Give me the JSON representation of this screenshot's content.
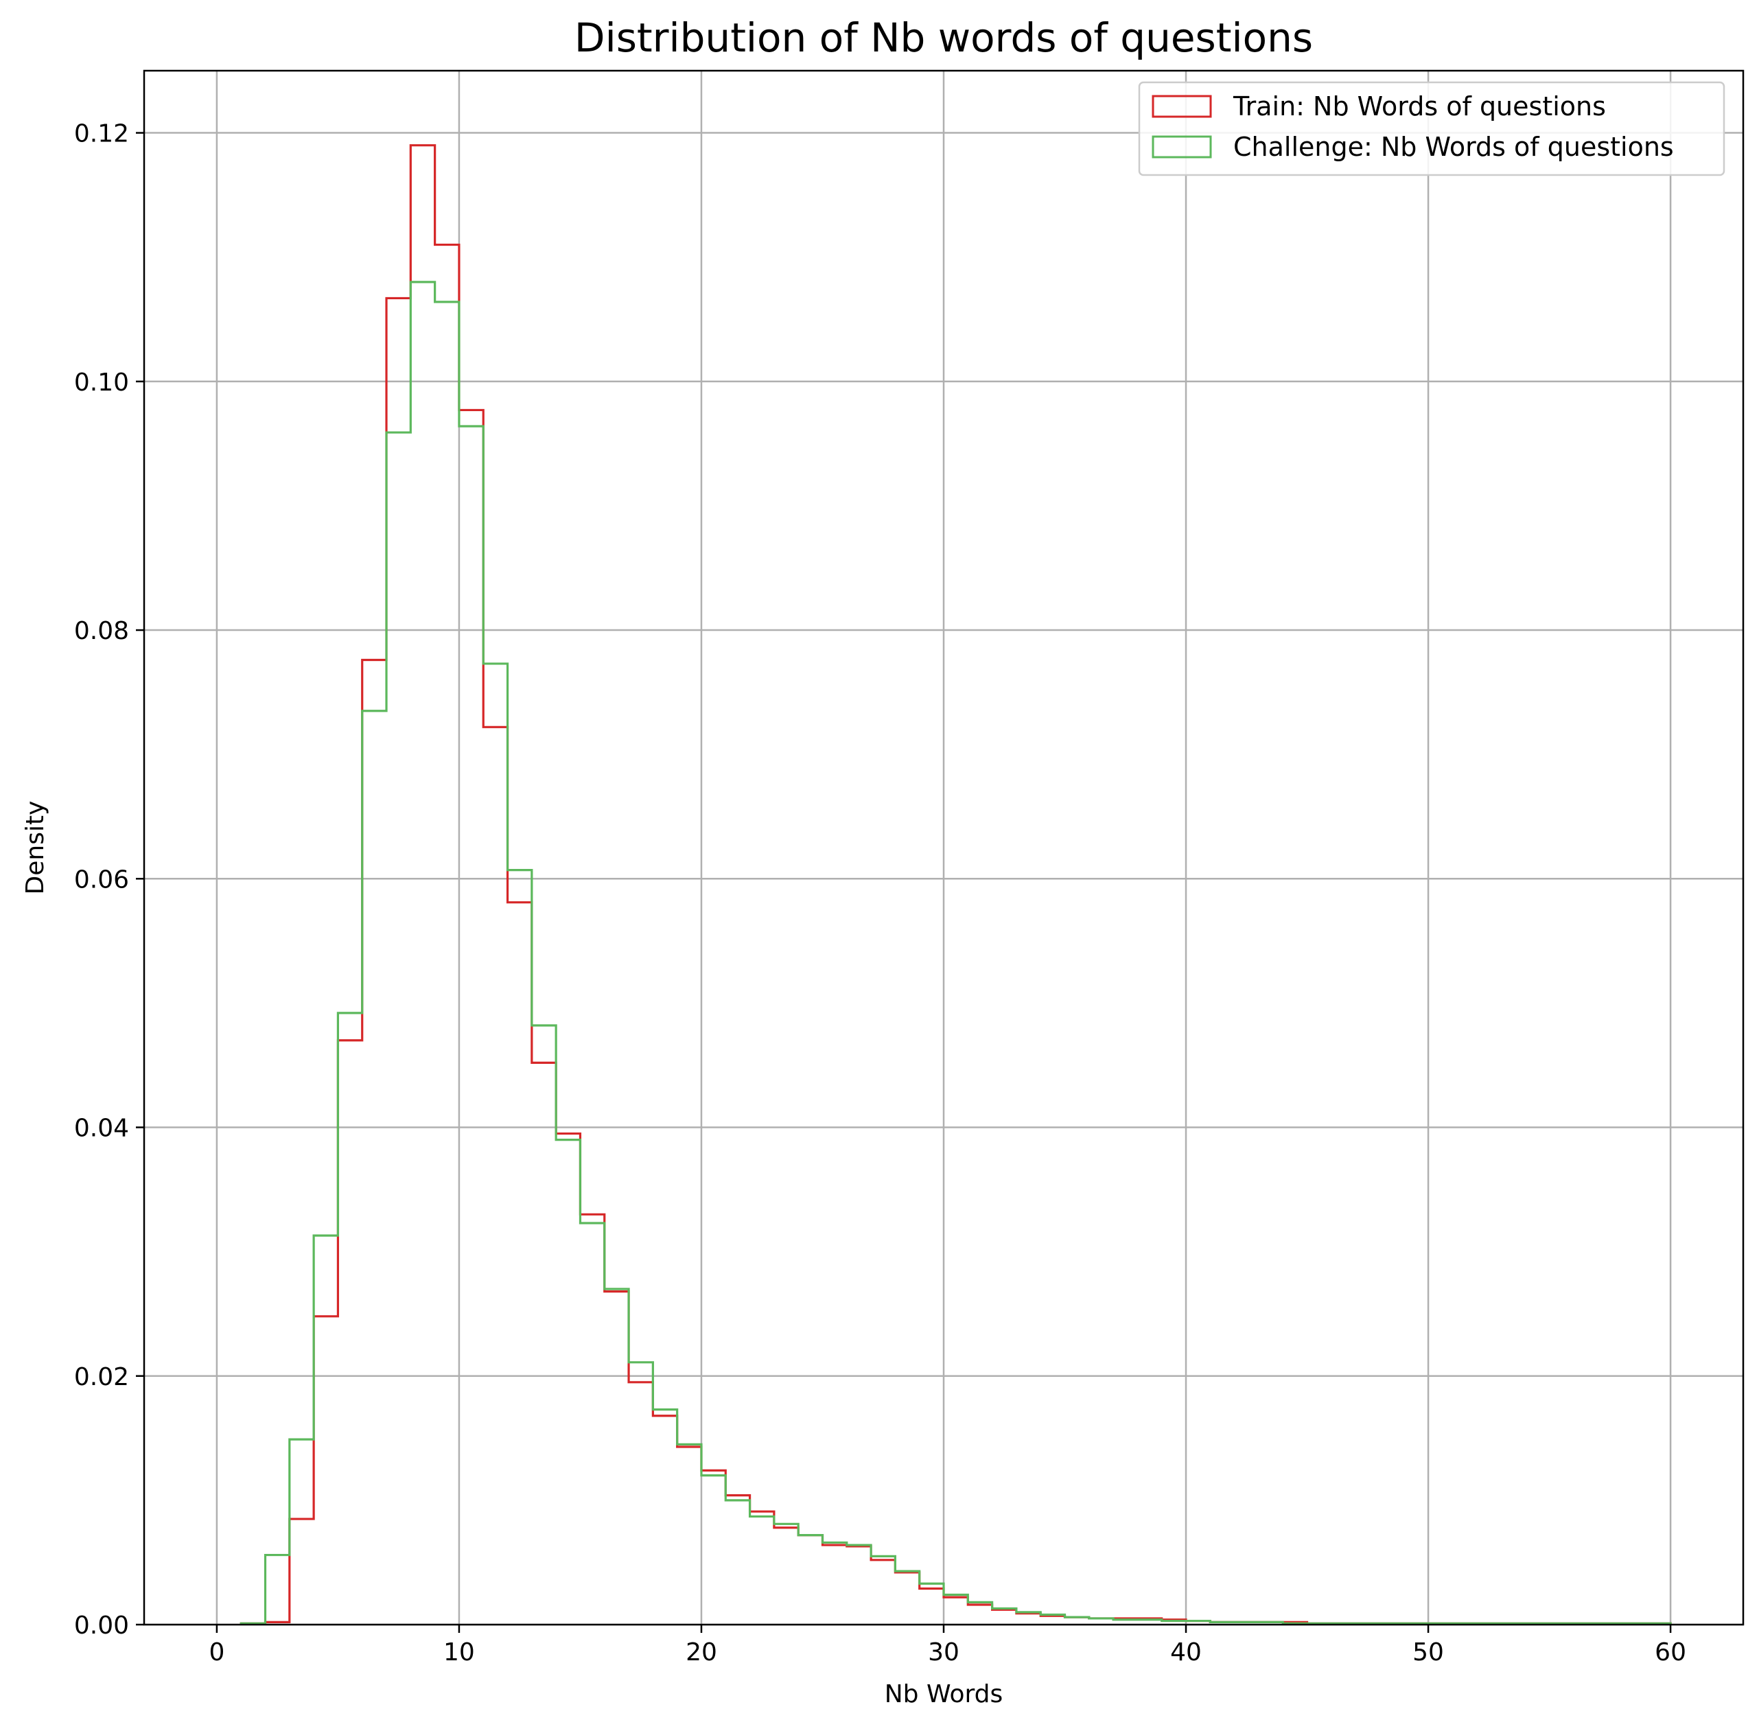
{
  "chart_data": {
    "type": "histogram",
    "title": "Distribution of Nb words of questions",
    "xlabel": "Nb Words",
    "ylabel": "Density",
    "xlim": [
      -3,
      63
    ],
    "ylim": [
      0,
      0.125
    ],
    "xticks": [
      0,
      10,
      20,
      30,
      40,
      50,
      60
    ],
    "xtick_labels": [
      "0",
      "10",
      "20",
      "30",
      "40",
      "50",
      "60"
    ],
    "yticks": [
      0.0,
      0.02,
      0.04,
      0.06,
      0.08,
      0.1,
      0.12
    ],
    "ytick_labels": [
      "0.00",
      "0.02",
      "0.04",
      "0.06",
      "0.08",
      "0.10",
      "0.12"
    ],
    "grid": true,
    "legend_position": "top-right",
    "bin_edges": [
      1,
      2,
      3,
      4,
      5,
      6,
      7,
      8,
      9,
      10,
      11,
      12,
      13,
      14,
      15,
      16,
      17,
      18,
      19,
      20,
      21,
      22,
      23,
      24,
      25,
      26,
      27,
      28,
      29,
      30,
      31,
      32,
      33,
      34,
      35,
      36,
      37,
      38,
      39,
      40,
      41,
      42,
      43,
      44,
      45,
      46,
      47,
      48,
      49,
      50,
      51,
      52,
      53,
      54,
      55,
      56,
      57,
      58,
      59,
      60
    ],
    "series": [
      {
        "name": "Train: Nb Words of questions",
        "color": "#d62728",
        "values": [
          0.0001,
          0.0002,
          0.0085,
          0.0248,
          0.047,
          0.0776,
          0.1067,
          0.119,
          0.111,
          0.0977,
          0.0722,
          0.0581,
          0.0452,
          0.0395,
          0.033,
          0.0268,
          0.0195,
          0.0168,
          0.0143,
          0.0124,
          0.0104,
          0.0091,
          0.0078,
          0.0072,
          0.0064,
          0.0063,
          0.0052,
          0.0042,
          0.0029,
          0.0022,
          0.0016,
          0.0012,
          0.0009,
          0.0007,
          0.0006,
          0.0005,
          0.0005,
          0.0005,
          0.0004,
          0.0003,
          0.0002,
          0.0002,
          0.0002,
          0.0002,
          0.0001,
          0.0001,
          0.0001,
          0.0001,
          0.0001,
          0.0001,
          0.0001,
          0.0001,
          0.0001,
          0.0001,
          0.0001,
          0.0001,
          0.0001,
          0.0001,
          0.0001
        ]
      },
      {
        "name": "Challenge: Nb Words of questions",
        "color": "#5cb85c",
        "values": [
          0.0001,
          0.0056,
          0.0149,
          0.0313,
          0.0492,
          0.0735,
          0.0959,
          0.108,
          0.1064,
          0.0964,
          0.0773,
          0.0607,
          0.0482,
          0.039,
          0.0323,
          0.027,
          0.0211,
          0.0173,
          0.0145,
          0.012,
          0.01,
          0.0087,
          0.0081,
          0.0072,
          0.0066,
          0.0064,
          0.0055,
          0.0043,
          0.0033,
          0.0024,
          0.0018,
          0.0013,
          0.001,
          0.0008,
          0.0006,
          0.0005,
          0.0004,
          0.0004,
          0.0003,
          0.0003,
          0.0002,
          0.0002,
          0.0002,
          0.0001,
          0.0001,
          0.0001,
          0.0001,
          0.0001,
          0.0001,
          0.0001,
          0.0001,
          0.0001,
          0.0001,
          0.0001,
          0.0001,
          0.0001,
          0.0001,
          0.0001,
          0.0001
        ]
      }
    ]
  }
}
